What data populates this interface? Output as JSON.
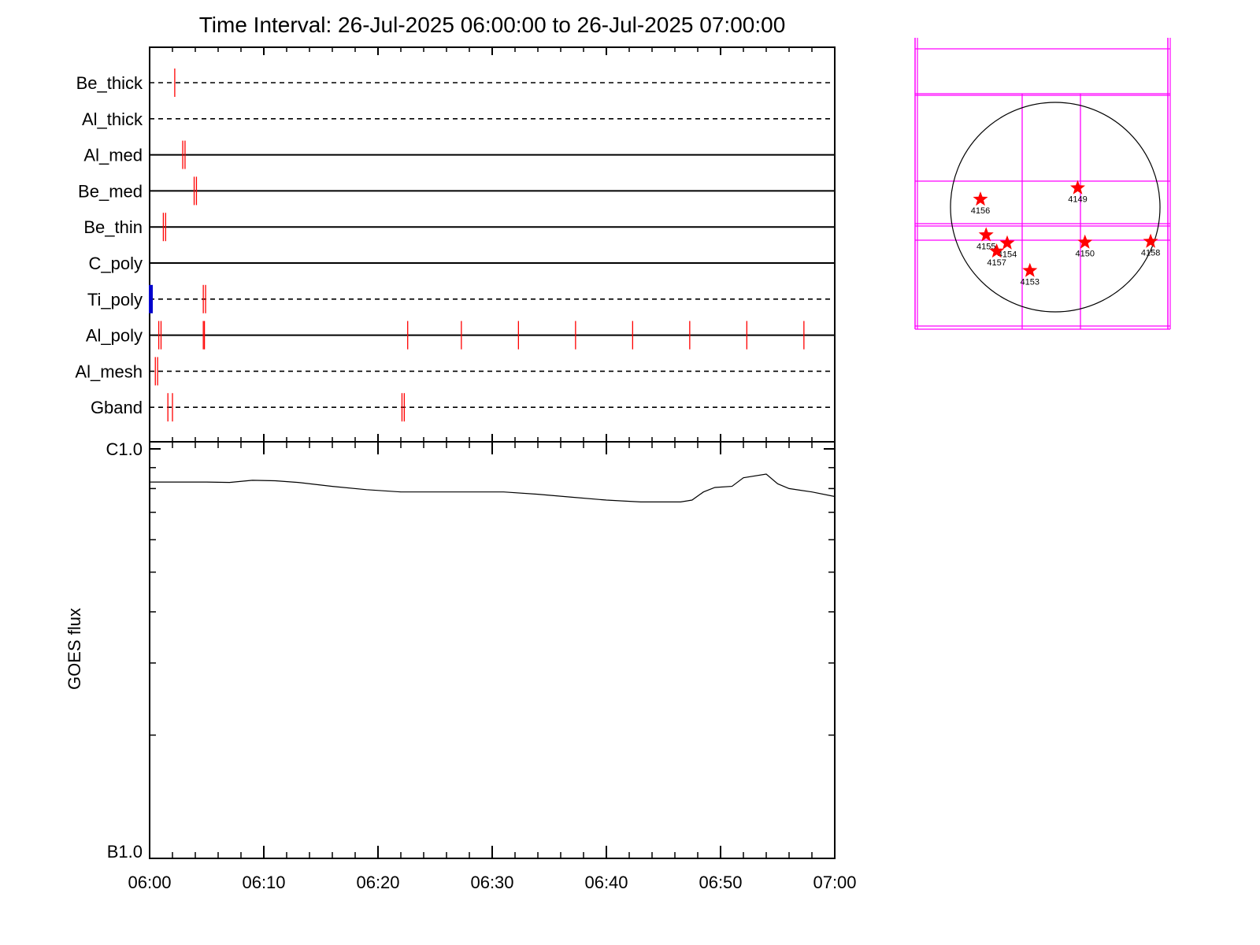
{
  "chart_data": [
    {
      "type": "timeline",
      "title": "Time Interval: 26-Jul-2025 06:00:00 to 26-Jul-2025 07:00:00",
      "x_range_minutes": [
        0,
        60
      ],
      "rows": [
        {
          "label": "Be_thick",
          "line": "dashed",
          "events": [
            [
              2.2
            ]
          ]
        },
        {
          "label": "Al_thick",
          "line": "dashed",
          "events": []
        },
        {
          "label": "Al_med",
          "line": "solid",
          "events": [
            [
              2.9,
              3.1
            ]
          ]
        },
        {
          "label": "Be_med",
          "line": "solid",
          "events": [
            [
              3.9,
              4.1
            ]
          ]
        },
        {
          "label": "Be_thin",
          "line": "solid",
          "events": [
            [
              1.2,
              1.4
            ]
          ]
        },
        {
          "label": "C_poly",
          "line": "solid",
          "events": []
        },
        {
          "label": "Ti_poly",
          "line": "dashed",
          "events": [
            [
              4.7,
              4.9
            ]
          ],
          "marker_start": true
        },
        {
          "label": "Al_poly",
          "line": "solid",
          "events": [
            [
              0.8,
              1.0
            ],
            [
              4.7,
              4.8
            ],
            [
              22.6
            ],
            [
              27.3
            ],
            [
              32.3
            ],
            [
              37.3
            ],
            [
              42.3
            ],
            [
              47.3
            ],
            [
              52.3
            ],
            [
              57.3
            ]
          ]
        },
        {
          "label": "Al_mesh",
          "line": "dashed",
          "events": [
            [
              0.5,
              0.7
            ]
          ]
        },
        {
          "label": "Gband",
          "line": "dashed",
          "events": [
            [
              1.6
            ],
            [
              2.0
            ],
            [
              22.1,
              22.3
            ]
          ]
        }
      ],
      "event_color": "#ff0000",
      "marker_color": "#0000cc"
    },
    {
      "type": "line",
      "ylabel": "GOES flux",
      "y_tick_labels": {
        "top": "C1.0",
        "bottom": "B1.0"
      },
      "x_tick_labels": [
        "06:00",
        "06:10",
        "06:20",
        "06:30",
        "06:40",
        "06:50",
        "07:00"
      ],
      "x_range_minutes": [
        0,
        60
      ],
      "ylim": [
        1.0,
        10.0
      ],
      "yscale": "log",
      "series": [
        {
          "x": [
            0,
            3,
            5,
            7,
            9,
            11,
            13,
            16,
            19,
            22,
            25,
            28,
            31,
            34,
            37,
            40,
            43,
            45,
            46.5,
            47.5,
            48.5,
            49.5,
            51,
            52,
            54,
            55,
            56,
            58,
            60
          ],
          "y": [
            8.3,
            8.3,
            8.3,
            8.28,
            8.38,
            8.36,
            8.28,
            8.1,
            7.95,
            7.85,
            7.85,
            7.85,
            7.85,
            7.75,
            7.62,
            7.5,
            7.42,
            7.42,
            7.42,
            7.5,
            7.85,
            8.05,
            8.1,
            8.5,
            8.68,
            8.22,
            8.0,
            7.85,
            7.65
          ],
          "color": "#000000"
        }
      ]
    },
    {
      "type": "scatter",
      "points": [
        {
          "label": "4149",
          "x": 1330,
          "y": 232
        },
        {
          "label": "4156",
          "x": 1210,
          "y": 246
        },
        {
          "label": "4155",
          "x": 1217,
          "y": 290
        },
        {
          "label": "4154",
          "x": 1243,
          "y": 300
        },
        {
          "label": "4157",
          "x": 1230,
          "y": 310
        },
        {
          "label": "4150",
          "x": 1339,
          "y": 299
        },
        {
          "label": "4158",
          "x": 1420,
          "y": 298
        },
        {
          "label": "4153",
          "x": 1271,
          "y": 334
        }
      ],
      "marker_color": "#ff0000",
      "grid_color": "#ff00ff"
    }
  ]
}
